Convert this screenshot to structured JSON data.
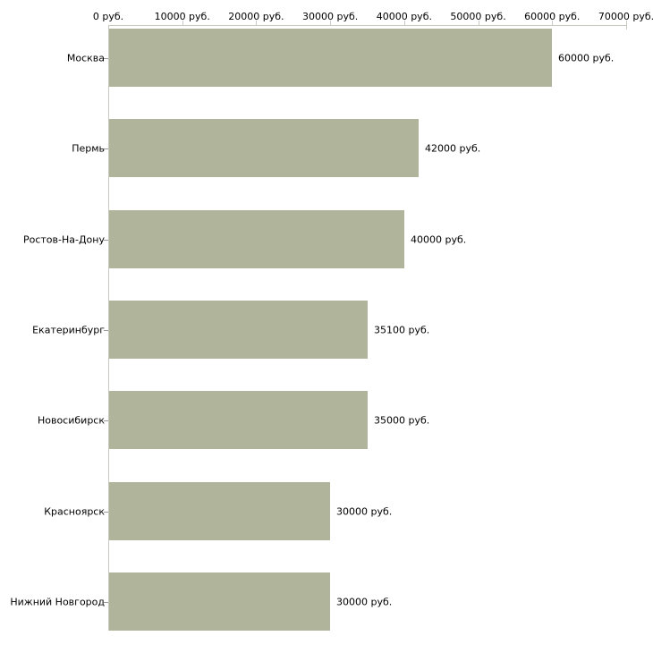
{
  "chart_data": {
    "type": "bar",
    "orientation": "horizontal",
    "title": "",
    "xlabel": "",
    "ylabel": "",
    "grid": false,
    "legend": null,
    "axis_position": "top",
    "categories": [
      "Москва",
      "Пермь",
      "Ростов-На-Дону",
      "Екатеринбург",
      "Новосибирск",
      "Красноярск",
      "Нижний Новгород"
    ],
    "values": [
      60000,
      42000,
      40000,
      35100,
      35000,
      30000,
      30000
    ],
    "value_labels": [
      "60000 руб.",
      "42000 руб.",
      "40000 руб.",
      "35100 руб.",
      "35000 руб.",
      "30000 руб.",
      "30000 руб."
    ],
    "xlim": [
      0,
      70000
    ],
    "x_ticks": [
      0,
      10000,
      20000,
      30000,
      40000,
      50000,
      60000,
      70000
    ],
    "x_tick_labels": [
      "0 руб.",
      "10000 руб.",
      "20000 руб.",
      "30000 руб.",
      "40000 руб.",
      "50000 руб.",
      "60000 руб.",
      "70000 руб."
    ],
    "unit": "руб.",
    "bar_color": "#b0b49b",
    "axis_color": "#c9c9c2",
    "category_tick_color": "#9a9a94",
    "text_color": "#000000",
    "background_color": "#ffffff"
  }
}
